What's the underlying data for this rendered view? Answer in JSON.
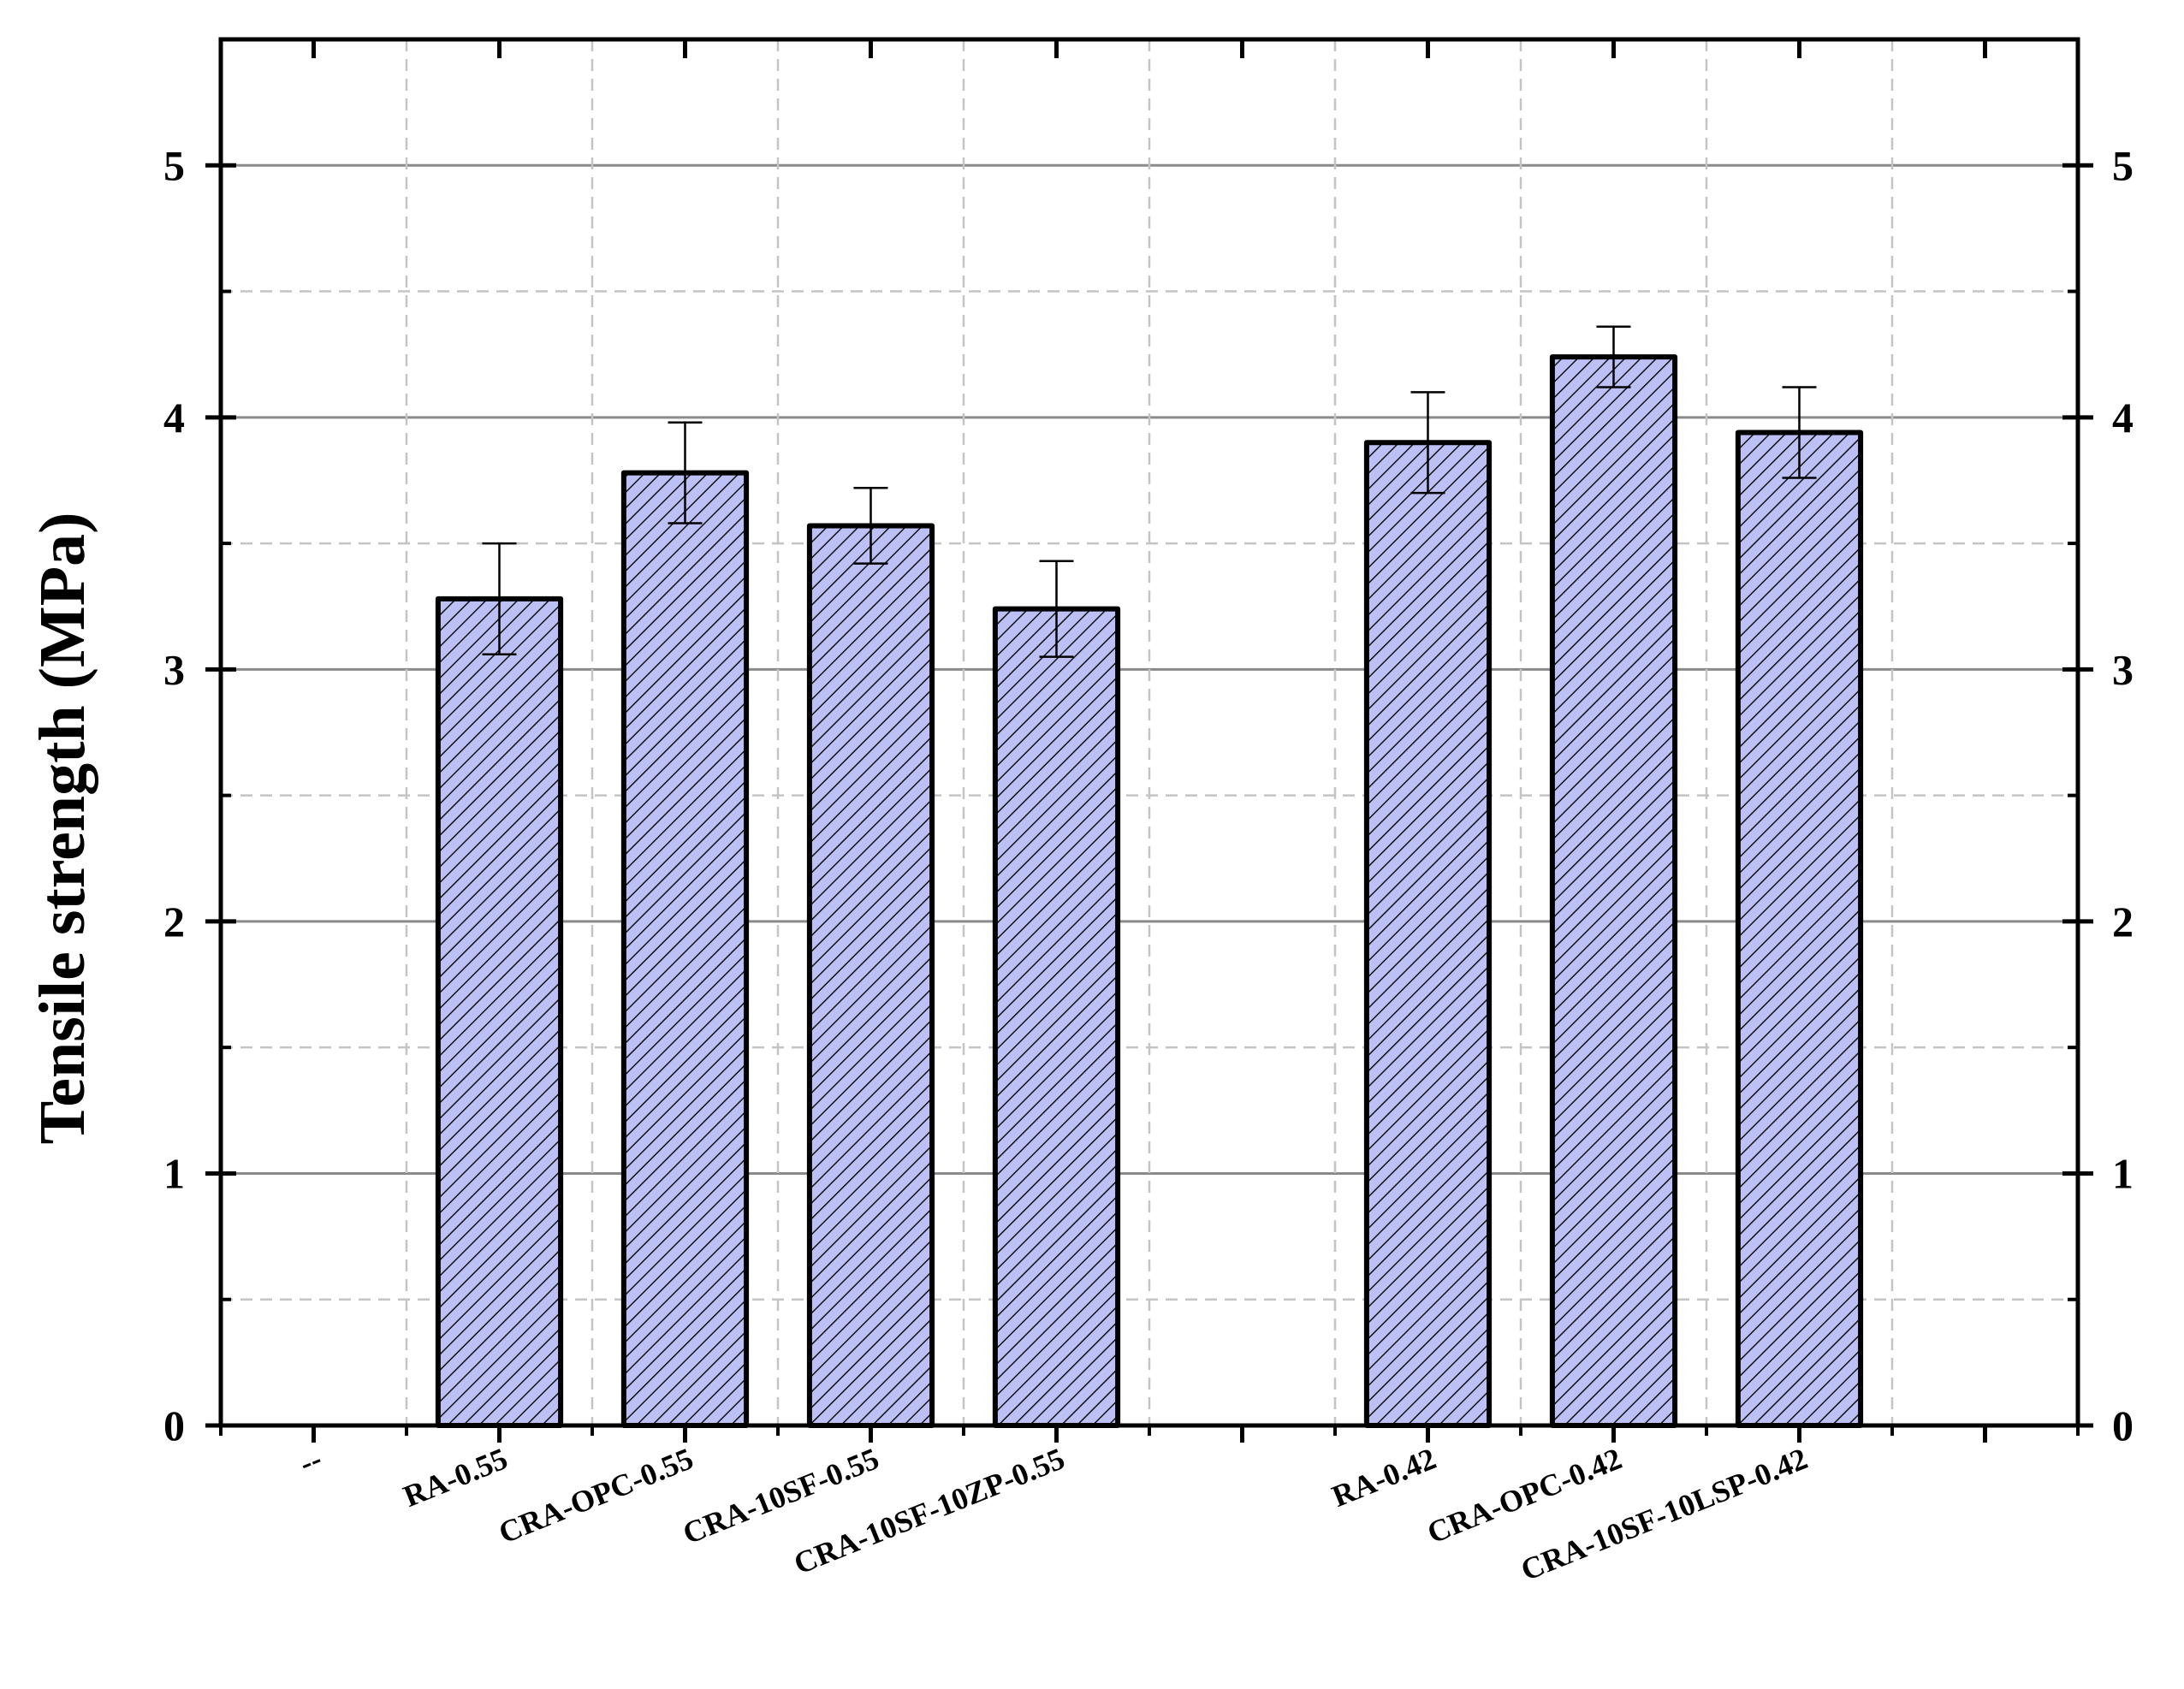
{
  "chart_data": {
    "type": "bar",
    "title": "",
    "xlabel": "",
    "ylabel": "Tensile strength (MPa)",
    "ylim": [
      0,
      5.5
    ],
    "yticks": [
      "0",
      "1",
      "2",
      "3",
      "4",
      "5"
    ],
    "categories": [
      "--",
      "RA-0.55",
      "CRA-OPC-0.55",
      "CRA-10SF-0.55",
      "CRA-10SF-10ZP-0.55",
      "",
      "RA-0.42",
      "CRA-OPC-0.42",
      "CRA-10SF-10LSP-0.42",
      ""
    ],
    "values": [
      null,
      3.28,
      3.78,
      3.57,
      3.24,
      null,
      3.9,
      4.24,
      3.94,
      null
    ],
    "errors": [
      null,
      0.22,
      0.2,
      0.15,
      0.19,
      null,
      0.2,
      0.12,
      0.18,
      null
    ],
    "bar_color": "#bcc0f5",
    "hatch": "diagonal",
    "edge_color": "#000000",
    "grid": "major solid, minor dashed",
    "right_axis_mirrored": true,
    "legend": "none"
  }
}
